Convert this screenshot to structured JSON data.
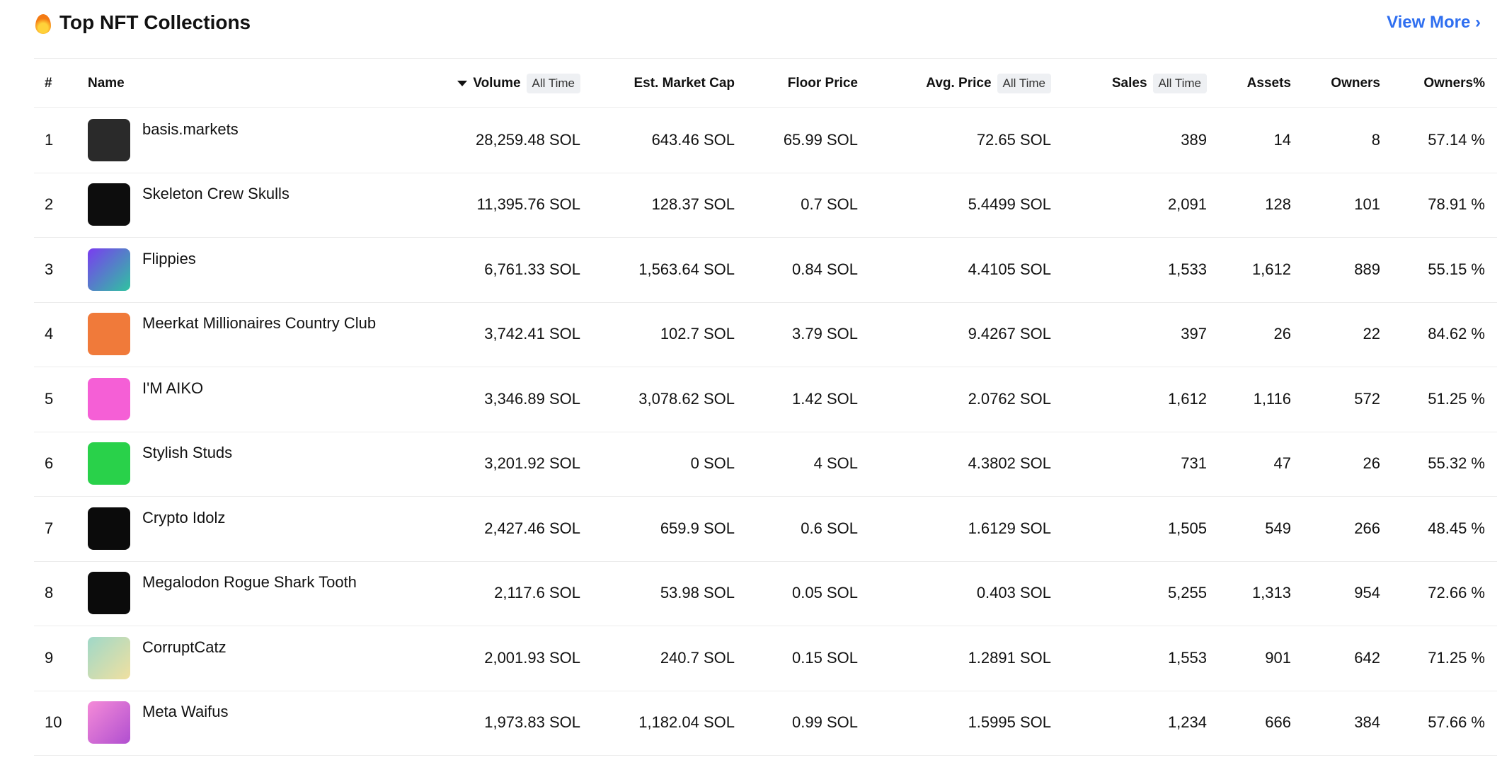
{
  "header": {
    "title": "Top NFT Collections",
    "link": "View More"
  },
  "table": {
    "columns": [
      {
        "label": "#"
      },
      {
        "label": "Name"
      },
      {
        "label": "Volume",
        "badge": "All Time"
      },
      {
        "label": "Est. Market Cap"
      },
      {
        "label": "Floor Price"
      },
      {
        "label": "Avg. Price",
        "badge": "All Time"
      },
      {
        "label": "Sales",
        "badge": "All Time"
      },
      {
        "label": "Assets"
      },
      {
        "label": "Owners"
      },
      {
        "label": "Owners%"
      }
    ],
    "rows": [
      [
        "1",
        "basis.markets",
        "28,259.48 SOL",
        "643.46 SOL",
        "65.99 SOL",
        "72.65 SOL",
        "389",
        "14",
        "8",
        "57.14 %"
      ],
      [
        "2",
        "Skeleton Crew Skulls",
        "11,395.76 SOL",
        "128.37 SOL",
        "0.7 SOL",
        "5.4499 SOL",
        "2,091",
        "128",
        "101",
        "78.91 %"
      ],
      [
        "3",
        "Flippies",
        "6,761.33 SOL",
        "1,563.64 SOL",
        "0.84 SOL",
        "4.4105 SOL",
        "1,533",
        "1,612",
        "889",
        "55.15 %"
      ],
      [
        "4",
        "Meerkat Millionaires Country Club",
        "3,742.41 SOL",
        "102.7 SOL",
        "3.79 SOL",
        "9.4267 SOL",
        "397",
        "26",
        "22",
        "84.62 %"
      ],
      [
        "5",
        "I'M AIKO",
        "3,346.89 SOL",
        "3,078.62 SOL",
        "1.42 SOL",
        "2.0762 SOL",
        "1,612",
        "1,116",
        "572",
        "51.25 %"
      ],
      [
        "6",
        "Stylish Studs",
        "3,201.92 SOL",
        "0 SOL",
        "4 SOL",
        "4.3802 SOL",
        "731",
        "47",
        "26",
        "55.32 %"
      ],
      [
        "7",
        "Crypto Idolz",
        "2,427.46 SOL",
        "659.9 SOL",
        "0.6 SOL",
        "1.6129 SOL",
        "1,505",
        "549",
        "266",
        "48.45 %"
      ],
      [
        "8",
        "Megalodon Rogue Shark Tooth",
        "2,117.6 SOL",
        "53.98 SOL",
        "0.05 SOL",
        "0.403 SOL",
        "5,255",
        "1,313",
        "954",
        "72.66 %"
      ],
      [
        "9",
        "CorruptCatz",
        "2,001.93 SOL",
        "240.7 SOL",
        "0.15 SOL",
        "1.2891 SOL",
        "1,553",
        "901",
        "642",
        "71.25 %"
      ],
      [
        "10",
        "Meta Waifus",
        "1,973.83 SOL",
        "1,182.04 SOL",
        "0.99 SOL",
        "1.5995 SOL",
        "1,234",
        "666",
        "384",
        "57.66 %"
      ]
    ]
  }
}
